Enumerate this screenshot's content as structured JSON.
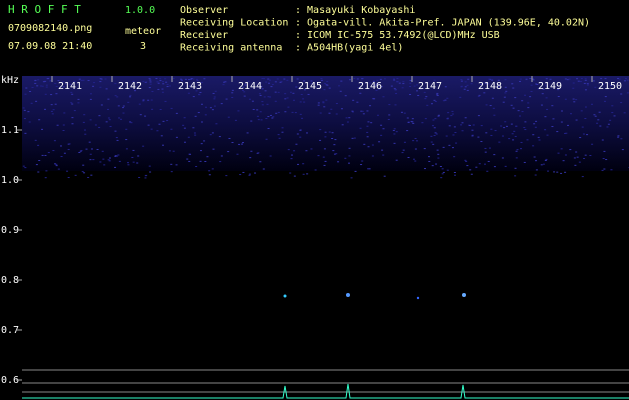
{
  "header": {
    "app_name": "H R O F F T",
    "version": "1.0.0",
    "file": "0709082140.png",
    "mode": "meteor",
    "datetime": "07.09.08 21:40",
    "count": "3"
  },
  "station": {
    "rows": [
      {
        "label": "Observer",
        "value": ": Masayuki Kobayashi"
      },
      {
        "label": "Receiving Location",
        "value": ": Ogata-vill. Akita-Pref. JAPAN (139.96E, 40.02N)"
      },
      {
        "label": "Receiver",
        "value": ": ICOM IC-575 53.7492(@LCD)MHz USB"
      },
      {
        "label": "Receiving antenna",
        "value": ": A504HB(yagi 4el)"
      }
    ]
  },
  "spectrogram": {
    "unit": "kHz",
    "x_labels": [
      "2141",
      "2142",
      "2143",
      "2144",
      "2145",
      "2146",
      "2147",
      "2148",
      "2149",
      "2150"
    ],
    "y_labels": [
      "1.1",
      "1.0",
      "0.9",
      "0.8",
      "0.7",
      "0.6"
    ]
  }
}
